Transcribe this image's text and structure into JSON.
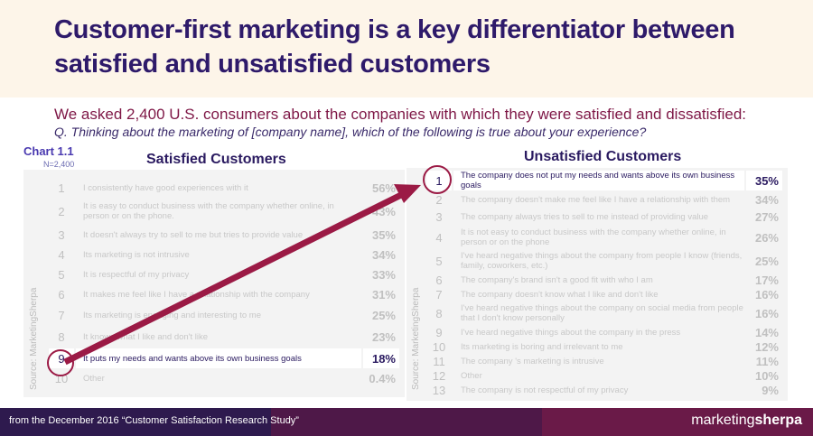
{
  "title": "Customer-first marketing is a key differentiator between satisfied and unsatisfied customers",
  "intro": "We asked 2,400 U.S. consumers about the companies with which they were satisfied and dissatisfied:",
  "question": "Q. Thinking about the marketing of [company name], which of the following is true about your experience?",
  "chart_label": "Chart 1.1",
  "sample": "N=2,400",
  "source": "Source: MarketingSherpa",
  "satisfied": {
    "heading": "Satisfied Customers",
    "highlight_rank": 9,
    "rows": [
      {
        "rank": "1",
        "text": "I consistently have good experiences with it",
        "pct": "56%"
      },
      {
        "rank": "2",
        "text": "It is easy to conduct business with the company whether online, in person or on the phone.",
        "pct": "43%"
      },
      {
        "rank": "3",
        "text": "It doesn't always try to sell to me but tries to provide value",
        "pct": "35%"
      },
      {
        "rank": "4",
        "text": "Its marketing is not intrusive",
        "pct": "34%"
      },
      {
        "rank": "5",
        "text": "It is respectful of my privacy",
        "pct": "33%"
      },
      {
        "rank": "6",
        "text": "It makes me feel like I have a relationship with the company",
        "pct": "31%"
      },
      {
        "rank": "7",
        "text": "Its marketing is engaging and interesting to me",
        "pct": "25%"
      },
      {
        "rank": "8",
        "text": "It knows what I like and don't like",
        "pct": "23%"
      },
      {
        "rank": "9",
        "text": "It puts my needs and wants above its own business goals",
        "pct": "18%"
      },
      {
        "rank": "10",
        "text": "Other",
        "pct": "0.4%"
      }
    ]
  },
  "unsatisfied": {
    "heading": "Unsatisfied Customers",
    "highlight_rank": 1,
    "rows": [
      {
        "rank": "1",
        "text": "The company does not put my needs and wants above its own business goals",
        "pct": "35%"
      },
      {
        "rank": "2",
        "text": "The company doesn't make me feel like I have a relationship with them",
        "pct": "34%"
      },
      {
        "rank": "3",
        "text": "The company always tries to sell to me instead of providing value",
        "pct": "27%"
      },
      {
        "rank": "4",
        "text": "It is not easy to conduct business with the company whether online, in person or on the phone",
        "pct": "26%"
      },
      {
        "rank": "5",
        "text": "I've heard negative things about the company from people I know (friends, family, coworkers, etc.)",
        "pct": "25%"
      },
      {
        "rank": "6",
        "text": "The company's brand isn't a good fit with who I am",
        "pct": "17%"
      },
      {
        "rank": "7",
        "text": "The company doesn't know what I like and don't like",
        "pct": "16%"
      },
      {
        "rank": "8",
        "text": "I've heard negative things about the company on social media from people that I don't know personally",
        "pct": "16%"
      },
      {
        "rank": "9",
        "text": "I've heard negative things about the company in the press",
        "pct": "14%"
      },
      {
        "rank": "10",
        "text": "Its marketing is boring and irrelevant to me",
        "pct": "12%"
      },
      {
        "rank": "11",
        "text": "The company 's marketing is intrusive",
        "pct": "11%"
      },
      {
        "rank": "12",
        "text": "Other",
        "pct": "10%"
      },
      {
        "rank": "13",
        "text": "The company is not respectful of my privacy",
        "pct": "9%"
      }
    ]
  },
  "footer": {
    "text": "from the December 2016 “Customer Satisfaction Research Study”",
    "logo_a": "marketing",
    "logo_b": "sherpa"
  },
  "colors": {
    "title": "#2e1a6a",
    "accent": "#9b1a45",
    "footer": [
      "#2e1a4e",
      "#4e1848",
      "#6a1a48"
    ]
  }
}
